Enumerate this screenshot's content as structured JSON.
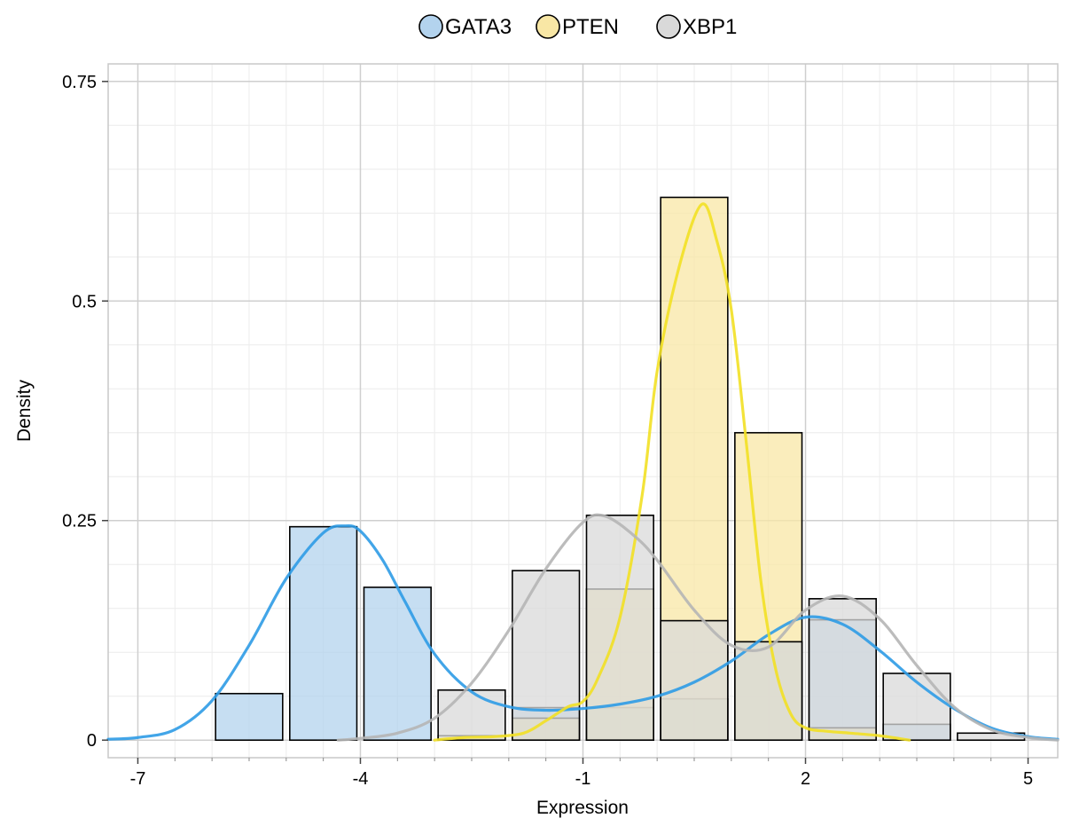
{
  "chart_data": {
    "type": "histogram",
    "xlabel": "Expression",
    "ylabel": "Density",
    "xlim": [
      -7.4,
      5.4
    ],
    "ylim": [
      -0.02,
      0.77
    ],
    "x_ticks": [
      -7,
      -4,
      -1,
      2,
      5
    ],
    "x_tick_labels": [
      "-7",
      "-4",
      "-1",
      "2",
      "5"
    ],
    "y_ticks": [
      0,
      0.25,
      0.5,
      0.75
    ],
    "y_tick_labels": [
      "0",
      "0.25",
      "0.5",
      "0.75"
    ],
    "x_minor_step": 0.5,
    "y_minor_step": 0.05,
    "grid": true,
    "legend_position": "top",
    "bin_edges": [
      -6.0,
      -5.0,
      -4.0,
      -3.0,
      -2.0,
      -1.0,
      0.0,
      1.0,
      2.0,
      3.0,
      4.0,
      5.0
    ],
    "series": [
      {
        "name": "GATA3",
        "color": "#2e9be6",
        "fill": "#b3d3ee",
        "bin_density": [
          0.053,
          0.243,
          0.174,
          0.0,
          0.037,
          0.037,
          0.047,
          0.112,
          0.137,
          0.018,
          0.0
        ],
        "density_curve": {
          "x": [
            -7.4,
            -7.0,
            -6.5,
            -6.0,
            -5.5,
            -5.0,
            -4.5,
            -4.2,
            -4.0,
            -3.7,
            -3.4,
            -3.0,
            -2.5,
            -2.0,
            -1.5,
            -1.0,
            -0.5,
            0.0,
            0.5,
            1.0,
            1.5,
            2.0,
            2.5,
            3.0,
            3.5,
            4.0,
            4.5,
            5.0,
            5.4
          ],
          "y": [
            0.001,
            0.003,
            0.012,
            0.045,
            0.108,
            0.184,
            0.236,
            0.244,
            0.238,
            0.205,
            0.158,
            0.098,
            0.055,
            0.038,
            0.034,
            0.036,
            0.041,
            0.05,
            0.066,
            0.09,
            0.12,
            0.14,
            0.132,
            0.102,
            0.066,
            0.036,
            0.014,
            0.004,
            0.001
          ]
        }
      },
      {
        "name": "PTEN",
        "color": "#f2e023",
        "fill": "#f8e7a5",
        "bin_density": [
          0.0,
          0.0,
          0.0,
          0.005,
          0.025,
          0.172,
          0.618,
          0.35,
          0.014,
          0.0,
          0.0
        ],
        "density_curve": {
          "x": [
            -3.0,
            -2.6,
            -2.2,
            -1.8,
            -1.5,
            -1.2,
            -1.0,
            -0.8,
            -0.5,
            -0.2,
            0.0,
            0.3,
            0.6,
            0.8,
            1.0,
            1.2,
            1.4,
            1.6,
            1.8,
            2.0,
            2.3,
            2.6,
            3.0,
            3.4
          ],
          "y": [
            0.0,
            0.003,
            0.004,
            0.008,
            0.022,
            0.038,
            0.044,
            0.07,
            0.14,
            0.28,
            0.42,
            0.54,
            0.61,
            0.57,
            0.49,
            0.34,
            0.18,
            0.08,
            0.03,
            0.014,
            0.01,
            0.008,
            0.005,
            0.0
          ]
        }
      },
      {
        "name": "XBP1",
        "color": "#b5b5b5",
        "fill": "#d9d9d9",
        "bin_density": [
          0.0,
          0.0,
          0.0,
          0.057,
          0.193,
          0.256,
          0.136,
          0.112,
          0.161,
          0.076,
          0.008
        ],
        "density_curve": {
          "x": [
            -4.3,
            -4.0,
            -3.5,
            -3.0,
            -2.5,
            -2.0,
            -1.5,
            -1.0,
            -0.7,
            -0.3,
            0.0,
            0.5,
            1.0,
            1.5,
            2.0,
            2.5,
            3.0,
            3.5,
            4.0,
            4.5,
            5.0,
            5.4
          ],
          "y": [
            0.0,
            0.002,
            0.008,
            0.025,
            0.065,
            0.125,
            0.195,
            0.248,
            0.255,
            0.232,
            0.205,
            0.148,
            0.108,
            0.106,
            0.148,
            0.164,
            0.138,
            0.085,
            0.038,
            0.012,
            0.003,
            0.0
          ]
        }
      }
    ]
  }
}
